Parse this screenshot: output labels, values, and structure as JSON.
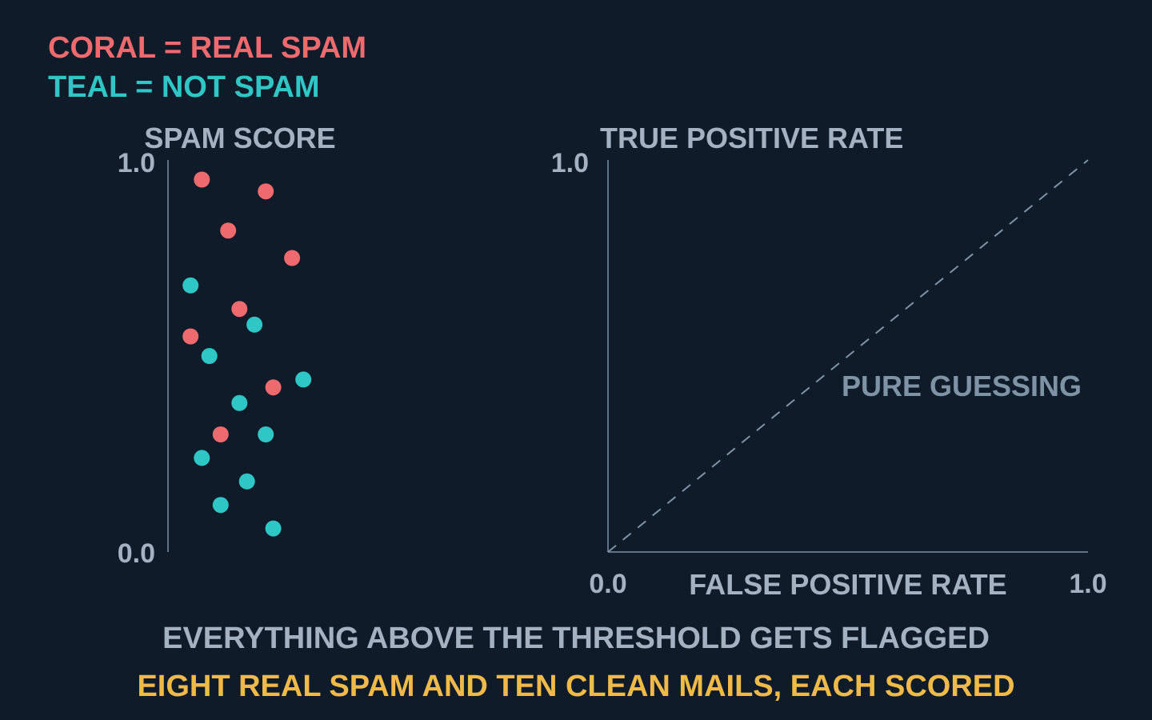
{
  "legend": {
    "spam_label": "CORAL = REAL SPAM",
    "clean_label": "TEAL = NOT SPAM"
  },
  "colors": {
    "background": "#0f1b29",
    "spam": "#ee6a6e",
    "clean": "#2fc6c6",
    "axis": "#5f7388",
    "label": "#a4b1c1",
    "caption": "#a4b1c1",
    "highlight": "#f0ba48"
  },
  "captions": {
    "line1": "EVERYTHING ABOVE THE THRESHOLD GETS FLAGGED",
    "line2": "EIGHT REAL SPAM AND TEN CLEAN MAILS, EACH SCORED"
  },
  "chart_data": [
    {
      "type": "scatter",
      "ylabel": "SPAM SCORE",
      "ylim": [
        0.0,
        1.0
      ],
      "y_ticks": [
        "0.0",
        "1.0"
      ],
      "grid": false,
      "series": [
        {
          "category": "spam",
          "color": "#ee6a6e",
          "points": [
            {
              "jitter": 0.09,
              "score": 0.95
            },
            {
              "jitter": 0.26,
              "score": 0.92
            },
            {
              "jitter": 0.16,
              "score": 0.82
            },
            {
              "jitter": 0.33,
              "score": 0.75
            },
            {
              "jitter": 0.19,
              "score": 0.62
            },
            {
              "jitter": 0.06,
              "score": 0.55
            },
            {
              "jitter": 0.28,
              "score": 0.42
            },
            {
              "jitter": 0.14,
              "score": 0.3
            }
          ]
        },
        {
          "category": "not spam",
          "color": "#2fc6c6",
          "points": [
            {
              "jitter": 0.06,
              "score": 0.68
            },
            {
              "jitter": 0.23,
              "score": 0.58
            },
            {
              "jitter": 0.11,
              "score": 0.5
            },
            {
              "jitter": 0.36,
              "score": 0.44
            },
            {
              "jitter": 0.19,
              "score": 0.38
            },
            {
              "jitter": 0.26,
              "score": 0.3
            },
            {
              "jitter": 0.09,
              "score": 0.24
            },
            {
              "jitter": 0.21,
              "score": 0.18
            },
            {
              "jitter": 0.14,
              "score": 0.12
            },
            {
              "jitter": 0.28,
              "score": 0.06
            }
          ]
        }
      ]
    },
    {
      "type": "line",
      "xlabel": "FALSE POSITIVE RATE",
      "ylabel": "TRUE POSITIVE RATE",
      "xlim": [
        0.0,
        1.0
      ],
      "ylim": [
        0.0,
        1.0
      ],
      "x_ticks": [
        "0.0",
        "1.0"
      ],
      "y_ticks": [
        "1.0"
      ],
      "grid": false,
      "series": [
        {
          "name": "PURE GUESSING",
          "style": "dashed",
          "x": [
            0.0,
            1.0
          ],
          "y": [
            0.0,
            1.0
          ]
        }
      ]
    }
  ]
}
